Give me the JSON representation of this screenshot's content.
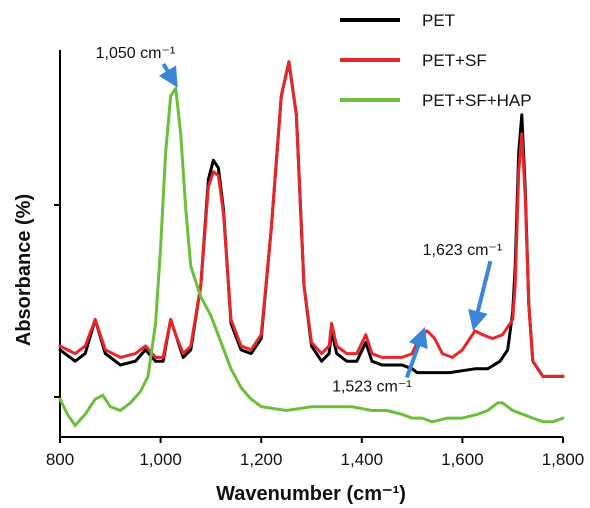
{
  "chart_data": {
    "type": "line",
    "xlabel": "Wavenumber (cm⁻¹)",
    "ylabel": "Absorbance (%)",
    "xlim": [
      800,
      1800
    ],
    "ylim": [
      0,
      1
    ],
    "x_ticks": [
      800,
      1000,
      1200,
      1400,
      1600,
      1800
    ],
    "x_tick_labels": [
      "800",
      "1,000",
      "1,200",
      "1,400",
      "1,600",
      "1,800"
    ],
    "y_tick_labels_shown": false,
    "grid": false,
    "legend_position": "top-right",
    "series": [
      {
        "name": "PET",
        "color": "#000000",
        "x": [
          800,
          830,
          850,
          870,
          890,
          920,
          950,
          970,
          990,
          1005,
          1020,
          1030,
          1045,
          1060,
          1080,
          1095,
          1105,
          1115,
          1125,
          1140,
          1160,
          1180,
          1200,
          1220,
          1240,
          1255,
          1270,
          1285,
          1300,
          1320,
          1335,
          1340,
          1350,
          1370,
          1390,
          1408,
          1420,
          1440,
          1460,
          1480,
          1500,
          1510,
          1520,
          1535,
          1550,
          1575,
          1600,
          1625,
          1650,
          1675,
          1690,
          1700,
          1705,
          1712,
          1718,
          1725,
          1732,
          1740,
          1760,
          1780,
          1800
        ],
        "values": [
          0.23,
          0.2,
          0.22,
          0.31,
          0.22,
          0.19,
          0.2,
          0.23,
          0.2,
          0.2,
          0.31,
          0.27,
          0.21,
          0.23,
          0.4,
          0.68,
          0.73,
          0.71,
          0.6,
          0.3,
          0.23,
          0.22,
          0.26,
          0.55,
          0.9,
          0.99,
          0.85,
          0.4,
          0.24,
          0.2,
          0.22,
          0.28,
          0.22,
          0.2,
          0.2,
          0.25,
          0.2,
          0.19,
          0.19,
          0.19,
          0.18,
          0.17,
          0.17,
          0.17,
          0.17,
          0.17,
          0.175,
          0.18,
          0.18,
          0.2,
          0.23,
          0.33,
          0.45,
          0.75,
          0.85,
          0.65,
          0.35,
          0.2,
          0.16,
          0.16,
          0.16
        ]
      },
      {
        "name": "PET+SF",
        "color": "#e8262a",
        "x": [
          800,
          830,
          850,
          870,
          890,
          920,
          950,
          970,
          990,
          1005,
          1020,
          1030,
          1045,
          1060,
          1080,
          1095,
          1105,
          1115,
          1125,
          1140,
          1160,
          1180,
          1200,
          1220,
          1240,
          1255,
          1270,
          1285,
          1300,
          1320,
          1335,
          1340,
          1350,
          1370,
          1390,
          1408,
          1420,
          1440,
          1460,
          1480,
          1500,
          1510,
          1520,
          1530,
          1545,
          1560,
          1580,
          1600,
          1615,
          1625,
          1640,
          1660,
          1680,
          1700,
          1705,
          1712,
          1718,
          1725,
          1732,
          1740,
          1760,
          1780,
          1800
        ],
        "values": [
          0.24,
          0.22,
          0.24,
          0.31,
          0.23,
          0.21,
          0.22,
          0.24,
          0.21,
          0.21,
          0.31,
          0.27,
          0.22,
          0.24,
          0.4,
          0.66,
          0.7,
          0.69,
          0.59,
          0.31,
          0.24,
          0.23,
          0.27,
          0.55,
          0.9,
          0.99,
          0.85,
          0.4,
          0.25,
          0.22,
          0.24,
          0.3,
          0.24,
          0.22,
          0.22,
          0.27,
          0.22,
          0.21,
          0.21,
          0.21,
          0.22,
          0.25,
          0.27,
          0.28,
          0.26,
          0.22,
          0.21,
          0.23,
          0.26,
          0.28,
          0.27,
          0.26,
          0.27,
          0.31,
          0.4,
          0.7,
          0.8,
          0.63,
          0.35,
          0.2,
          0.16,
          0.16,
          0.16
        ]
      },
      {
        "name": "PET+SF+HAP",
        "color": "#6cbf3b",
        "x": [
          800,
          815,
          830,
          850,
          870,
          885,
          900,
          920,
          940,
          960,
          975,
          990,
          1000,
          1010,
          1020,
          1030,
          1040,
          1050,
          1060,
          1080,
          1100,
          1120,
          1140,
          1160,
          1180,
          1200,
          1250,
          1300,
          1340,
          1380,
          1420,
          1450,
          1480,
          1500,
          1520,
          1540,
          1570,
          1600,
          1630,
          1650,
          1670,
          1680,
          1700,
          1720,
          1740,
          1760,
          1780,
          1800
        ],
        "values": [
          0.1,
          0.06,
          0.03,
          0.06,
          0.1,
          0.11,
          0.08,
          0.07,
          0.09,
          0.12,
          0.16,
          0.3,
          0.5,
          0.75,
          0.9,
          0.92,
          0.8,
          0.6,
          0.45,
          0.37,
          0.32,
          0.25,
          0.18,
          0.13,
          0.1,
          0.08,
          0.07,
          0.08,
          0.08,
          0.08,
          0.07,
          0.07,
          0.06,
          0.05,
          0.05,
          0.04,
          0.05,
          0.05,
          0.06,
          0.07,
          0.09,
          0.09,
          0.07,
          0.06,
          0.05,
          0.04,
          0.04,
          0.05
        ]
      }
    ],
    "annotations": [
      {
        "text": "1,050 cm⁻¹",
        "x": 1030,
        "y": 0.92,
        "label_x": 950,
        "label_y": 1.0
      },
      {
        "text": "1,623 cm⁻¹",
        "x": 1623,
        "y": 0.28,
        "label_x": 1600,
        "label_y": 0.48
      },
      {
        "text": "1,523 cm⁻¹",
        "x": 1523,
        "y": 0.27,
        "label_x": 1420,
        "label_y": 0.12
      }
    ]
  }
}
